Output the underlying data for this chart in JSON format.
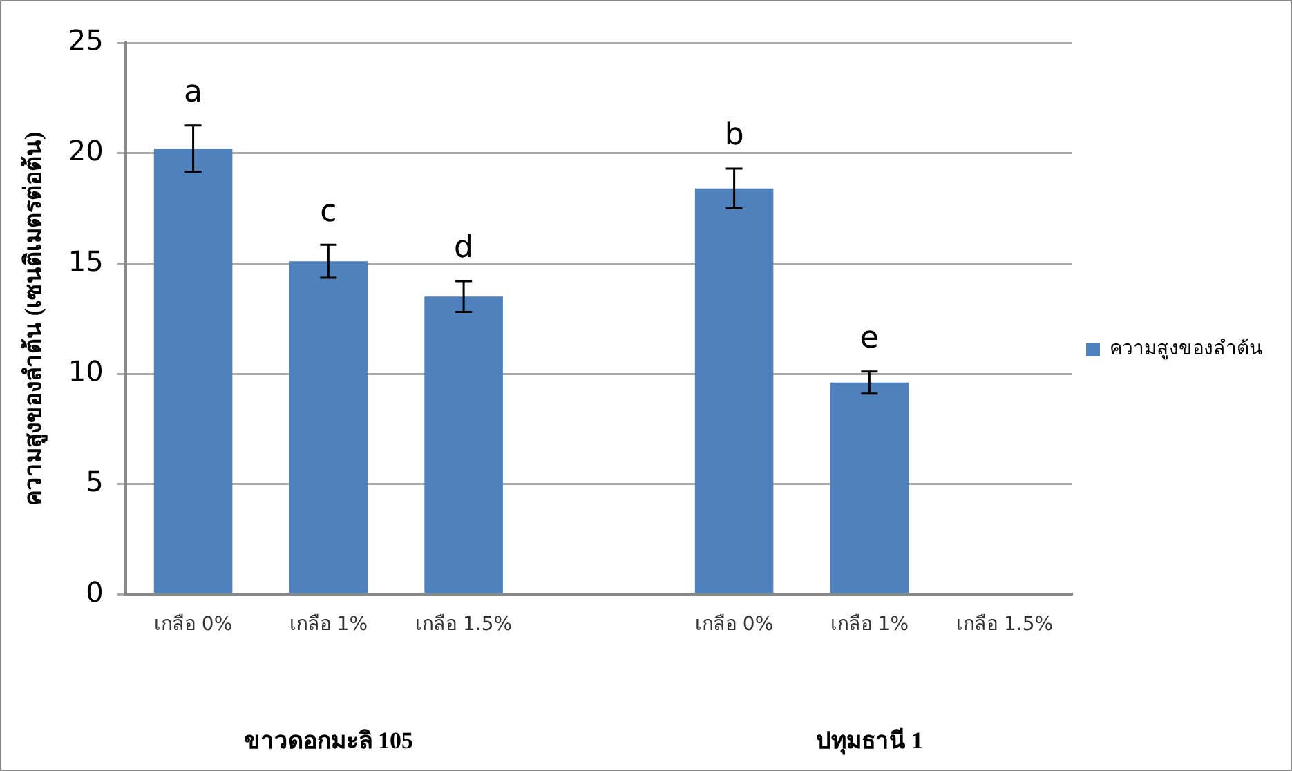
{
  "chart_data": {
    "type": "bar",
    "ylabel": "ความสูงของลำต้น (เซนติเมตรต่อต้น)",
    "categories": [
      "เกลือ 0%",
      "เกลือ 1%",
      "เกลือ 1.5%",
      null,
      "เกลือ 0%",
      "เกลือ 1%",
      "เกลือ 1.5%"
    ],
    "series": [
      {
        "name": "ความสูงของลำต้น",
        "color": "#4f81bd",
        "values": [
          20.2,
          15.1,
          13.5,
          null,
          18.4,
          9.6,
          null
        ],
        "errors": [
          1.05,
          0.75,
          0.7,
          null,
          0.9,
          0.5,
          null
        ],
        "value_labels": [
          "a",
          "c",
          "d",
          null,
          "b",
          "e",
          null
        ]
      }
    ],
    "annotations": [
      "ขาวดอกมะลิ 105",
      "ปทุมธานี 1"
    ],
    "ylim": [
      0,
      25
    ],
    "yticks": [
      0,
      5,
      10,
      15,
      20,
      25
    ],
    "grid": "y",
    "legend": "right"
  }
}
